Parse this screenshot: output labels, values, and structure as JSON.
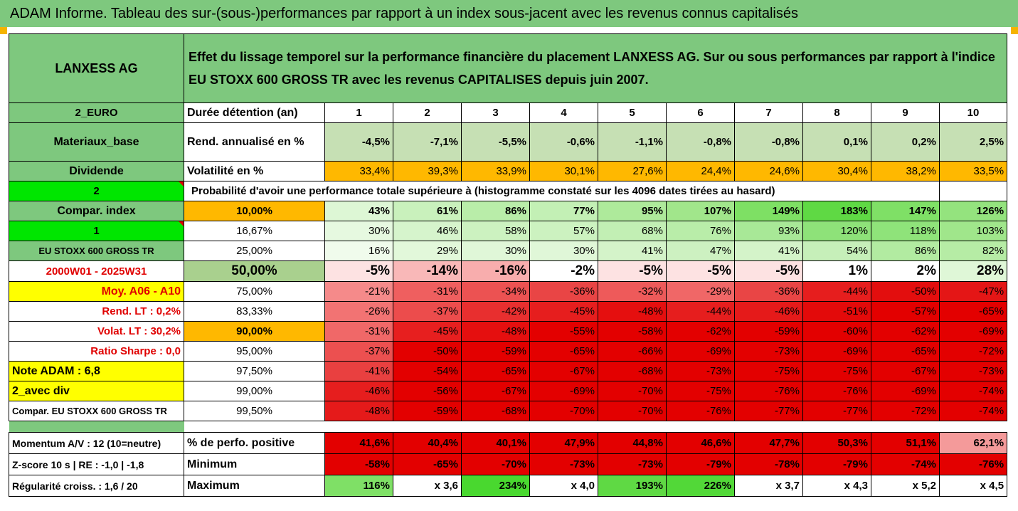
{
  "banner": "ADAM Informe. Tableau des sur-(sous-)performances par rapport à un index sous-jacent avec les revenus connus capitalisés",
  "company": "LANXESS AG",
  "header_text": "Effet du lissage temporel sur la performance financière du placement LANXESS AG. Sur ou sous performances par rapport à l'indice EU STOXX 600 GROSS TR avec les revenus CAPITALISES depuis juin 2007.",
  "currency": "2_EURO",
  "duration_label": "Durée détention (an)",
  "years": [
    "1",
    "2",
    "3",
    "4",
    "5",
    "6",
    "7",
    "8",
    "9",
    "10"
  ],
  "sector": "Materiaux_base",
  "rend_label": "Rend. annualisé en %",
  "rend": [
    "-4,5%",
    "-7,1%",
    "-5,5%",
    "-0,6%",
    "-1,1%",
    "-0,8%",
    "-0,8%",
    "0,1%",
    "0,2%",
    "2,5%"
  ],
  "dividend": "Dividende",
  "vol_label": "Volatilité en %",
  "vol": [
    "33,4%",
    "39,3%",
    "33,9%",
    "30,1%",
    "27,6%",
    "24,4%",
    "24,6%",
    "30,4%",
    "38,2%",
    "33,5%"
  ],
  "left_2": "2",
  "prob_text": "Probabilité d'avoir une performance totale supérieure à (histogramme constaté sur les 4096 dates tirées au hasard)",
  "left_labels": [
    "Compar. index",
    "1",
    "EU STOXX 600 GROSS TR",
    "2000W01 - 2025W31",
    "Moy. A06 - A10",
    "Rend. LT :   0,2%",
    "Volat. LT :   30,2%",
    "Ratio Sharpe :   0,0",
    "Note ADAM : 6,8",
    "2_avec div",
    "Compar. EU STOXX 600 GROSS TR"
  ],
  "prob_rows": [
    {
      "p": "10,00%",
      "v": [
        "43%",
        "61%",
        "86%",
        "77%",
        "95%",
        "107%",
        "149%",
        "183%",
        "147%",
        "126%"
      ]
    },
    {
      "p": "16,67%",
      "v": [
        "30%",
        "46%",
        "58%",
        "57%",
        "68%",
        "76%",
        "93%",
        "120%",
        "118%",
        "103%"
      ]
    },
    {
      "p": "25,00%",
      "v": [
        "16%",
        "29%",
        "30%",
        "30%",
        "41%",
        "47%",
        "41%",
        "54%",
        "86%",
        "82%"
      ]
    },
    {
      "p": "50,00%",
      "v": [
        "-5%",
        "-14%",
        "-16%",
        "-2%",
        "-5%",
        "-5%",
        "-5%",
        "1%",
        "2%",
        "28%"
      ]
    },
    {
      "p": "75,00%",
      "v": [
        "-21%",
        "-31%",
        "-34%",
        "-36%",
        "-32%",
        "-29%",
        "-36%",
        "-44%",
        "-50%",
        "-47%"
      ]
    },
    {
      "p": "83,33%",
      "v": [
        "-26%",
        "-37%",
        "-42%",
        "-45%",
        "-48%",
        "-44%",
        "-46%",
        "-51%",
        "-57%",
        "-65%"
      ]
    },
    {
      "p": "90,00%",
      "v": [
        "-31%",
        "-45%",
        "-48%",
        "-55%",
        "-58%",
        "-62%",
        "-59%",
        "-60%",
        "-62%",
        "-69%"
      ]
    },
    {
      "p": "95,00%",
      "v": [
        "-37%",
        "-50%",
        "-59%",
        "-65%",
        "-66%",
        "-69%",
        "-73%",
        "-69%",
        "-65%",
        "-72%"
      ]
    },
    {
      "p": "97,50%",
      "v": [
        "-41%",
        "-54%",
        "-65%",
        "-67%",
        "-68%",
        "-73%",
        "-75%",
        "-75%",
        "-67%",
        "-73%"
      ]
    },
    {
      "p": "99,00%",
      "v": [
        "-46%",
        "-56%",
        "-67%",
        "-69%",
        "-70%",
        "-75%",
        "-76%",
        "-76%",
        "-69%",
        "-74%"
      ]
    },
    {
      "p": "99,50%",
      "v": [
        "-48%",
        "-59%",
        "-68%",
        "-70%",
        "-70%",
        "-76%",
        "-77%",
        "-77%",
        "-72%",
        "-74%"
      ]
    }
  ],
  "momentum_label": "Momentum A/V : 12 (10=neutre)",
  "pos_label": "% de perfo. positive",
  "pos": [
    "41,6%",
    "40,4%",
    "40,1%",
    "47,9%",
    "44,8%",
    "46,6%",
    "47,7%",
    "50,3%",
    "51,1%",
    "62,1%"
  ],
  "zscore_label": "Z-score 10 s  |  RE : -1,0  |  -1,8",
  "min_label": "Minimum",
  "min": [
    "-58%",
    "-65%",
    "-70%",
    "-73%",
    "-73%",
    "-79%",
    "-78%",
    "-79%",
    "-74%",
    "-76%"
  ],
  "regul_label": "Régularité croiss. : 1,6 / 20",
  "max_label": "Maximum",
  "max": [
    "116%",
    "x 3,6",
    "234%",
    "x 4,0",
    "193%",
    "226%",
    "x 3,7",
    "x 4,3",
    "x 5,2",
    "x 4,5"
  ],
  "colors": {
    "rend": [
      "#c6e0b4",
      "#c6e0b4",
      "#c6e0b4",
      "#c6e0b4",
      "#c6e0b4",
      "#c6e0b4",
      "#c6e0b4",
      "#c6e0b4",
      "#c6e0b4",
      "#c6e0b4"
    ],
    "vol": [
      "#ffb800",
      "#ffb800",
      "#ffb800",
      "#ffb800",
      "#ffb800",
      "#ffb800",
      "#ffb800",
      "#ffb800",
      "#ffb800",
      "#ffb800"
    ],
    "prob": [
      [
        "#ddf7d5",
        "#c9f1bc",
        "#b9eda9",
        "#c3f0b5",
        "#aeea9b",
        "#a1e68b",
        "#7ee064",
        "#5fd944",
        "#7fe066",
        "#94e37e"
      ],
      [
        "#e6f9e0",
        "#d6f4cc",
        "#ccf2c0",
        "#ccf2c0",
        "#c2efb4",
        "#b9eda9",
        "#a8e897",
        "#8ee279",
        "#8fe37a",
        "#a0e68b"
      ],
      [
        "#f0fbec",
        "#e2f8da",
        "#e0f7d8",
        "#e0f7d8",
        "#d4f3c9",
        "#cdf1c1",
        "#d4f3c9",
        "#c6efb9",
        "#b2eba1",
        "#b6eca5"
      ],
      [
        "#fde2e2",
        "#f9b8b8",
        "#f8adad",
        "#ffffff",
        "#fde2e2",
        "#fde2e2",
        "#fde2e2",
        "#ffffff",
        "#ffffff",
        "#dff7d7"
      ],
      [
        "#f58a8a",
        "#ef5f5f",
        "#ec5252",
        "#e94545",
        "#ee5a5a",
        "#f06767",
        "#e94545",
        "#e61e1e",
        "#e30e0e",
        "#e41616"
      ],
      [
        "#f27373",
        "#ec4c4c",
        "#e82f2f",
        "#e61e1e",
        "#e50f0f",
        "#e61e1e",
        "#e51a1a",
        "#e30a0a",
        "#e30000",
        "#e30000"
      ],
      [
        "#f06868",
        "#e71f1f",
        "#e50f0f",
        "#e30000",
        "#e30000",
        "#e30000",
        "#e30000",
        "#e30000",
        "#e30000",
        "#e30000"
      ],
      [
        "#ec5050",
        "#e30000",
        "#e30000",
        "#e30000",
        "#e30000",
        "#e30000",
        "#e30000",
        "#e30000",
        "#e30000",
        "#e30000"
      ],
      [
        "#e94040",
        "#e30000",
        "#e30000",
        "#e30000",
        "#e30000",
        "#e30000",
        "#e30000",
        "#e30000",
        "#e30000",
        "#e30000"
      ],
      [
        "#e61e1e",
        "#e30000",
        "#e30000",
        "#e30000",
        "#e30000",
        "#e30000",
        "#e30000",
        "#e30000",
        "#e30000",
        "#e30000"
      ],
      [
        "#e51a1a",
        "#e30000",
        "#e30000",
        "#e30000",
        "#e30000",
        "#e30000",
        "#e30000",
        "#e30000",
        "#e30000",
        "#e30000"
      ]
    ],
    "pos": [
      "#e30000",
      "#e30000",
      "#e30000",
      "#e30000",
      "#e30000",
      "#e30000",
      "#e30000",
      "#e30000",
      "#e30000",
      "#f49a9a"
    ],
    "min": [
      "#e30000",
      "#e30000",
      "#e30000",
      "#e30000",
      "#e30000",
      "#e30000",
      "#e30000",
      "#e30000",
      "#e30000",
      "#e30000"
    ],
    "max": [
      "#7fe066",
      "#ffffff",
      "#49d82f",
      "#ffffff",
      "#5fd944",
      "#52d838",
      "#ffffff",
      "#ffffff",
      "#ffffff",
      "#ffffff"
    ]
  }
}
